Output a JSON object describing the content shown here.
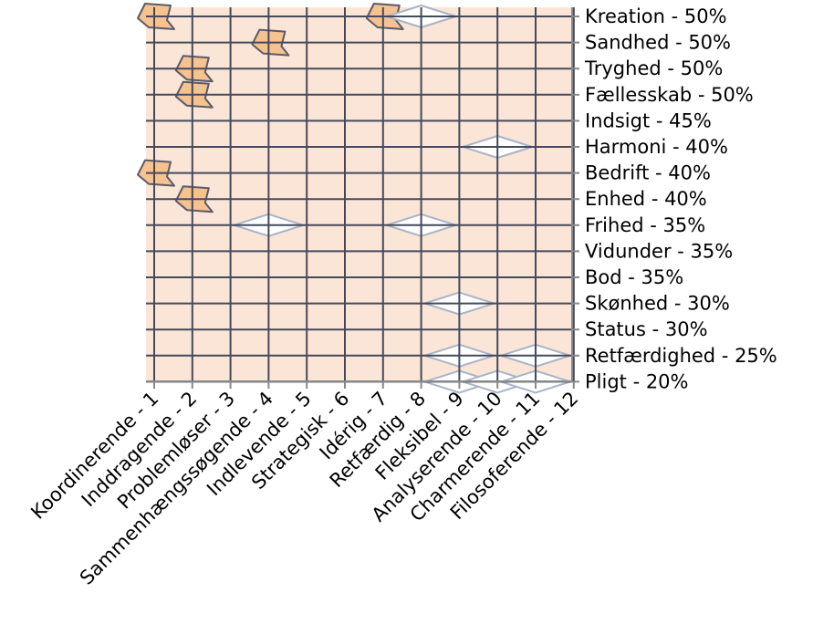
{
  "chart_data": {
    "type": "heatmap",
    "title": "",
    "xlabel": "",
    "ylabel": "",
    "x_categories": [
      "Koordinerende - 1",
      "Inddragende - 2",
      "Problemløser - 3",
      "Sammenhængssøgende - 4",
      "Indlevende - 5",
      "Strategisk - 6",
      "Idérig - 7",
      "Retfærdig - 8",
      "Fleksibel - 9",
      "Analyserende - 10",
      "Charmerende - 11",
      "Filosoferende - 12"
    ],
    "y_categories": [
      "Kreation - 50%",
      "Sandhed - 50%",
      "Tryghed - 50%",
      "Fællesskab - 50%",
      "Indsigt - 45%",
      "Harmoni - 40%",
      "Bedrift - 40%",
      "Enhed - 40%",
      "Frihed - 35%",
      "Vidunder - 35%",
      "Bod - 35%",
      "Skønhed - 30%",
      "Status - 30%",
      "Retfærdighed - 25%",
      "Pligt - 20%"
    ],
    "high_regions": [
      {
        "x": 1,
        "y": "Kreation - 50%"
      },
      {
        "x": 2,
        "y": "Tryghed - 50%"
      },
      {
        "x": 2,
        "y": "Fællesskab - 50%"
      },
      {
        "x": 4,
        "y": "Sandhed - 50%"
      },
      {
        "x": 7,
        "y": "Kreation - 50%"
      },
      {
        "x": 1,
        "y": "Bedrift - 40%"
      },
      {
        "x": 2,
        "y": "Enhed - 40%"
      }
    ],
    "low_regions": [
      {
        "x": 8,
        "y": "Kreation - 50%"
      },
      {
        "x": 10,
        "y": "Harmoni - 40%"
      },
      {
        "x": 4,
        "y": "Frihed - 35%"
      },
      {
        "x": 8,
        "y": "Frihed - 35%"
      },
      {
        "x": 9,
        "y": "Skønhed - 30%"
      },
      {
        "x": 9,
        "y": "Retfærdighed - 25%"
      },
      {
        "x": 11,
        "y": "Retfærdighed - 25%"
      },
      {
        "x": 9,
        "y": "Pligt - 20%"
      },
      {
        "x": 10,
        "y": "Pligt - 20%"
      },
      {
        "x": 11,
        "y": "Pligt - 20%"
      }
    ],
    "grid": true,
    "colors": {
      "background": "#fbe5d6",
      "high": "#f6c28f",
      "low": "#ffffff",
      "grid": "#444a5c",
      "low_outline": "#a8b4c8"
    }
  }
}
